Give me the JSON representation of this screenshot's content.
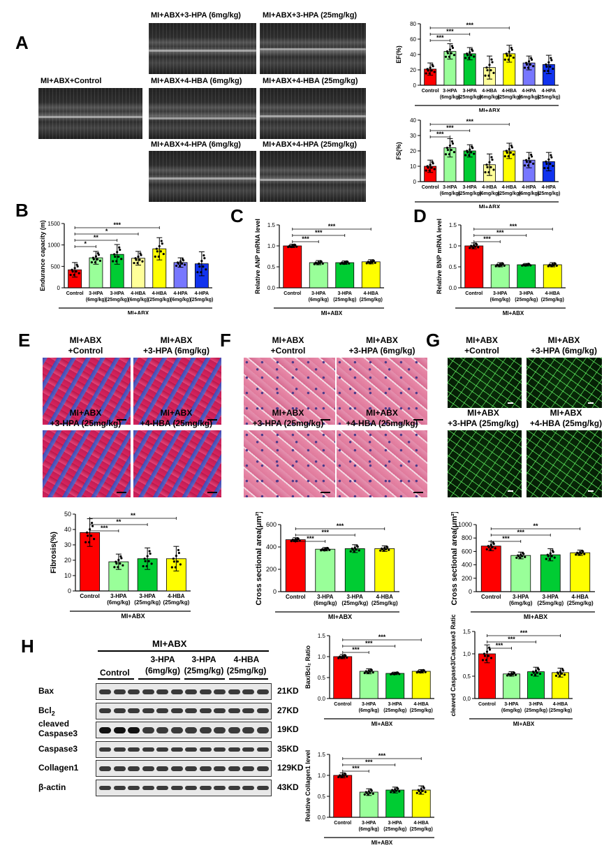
{
  "panels": {
    "A": "A",
    "B": "B",
    "C": "C",
    "D": "D",
    "E": "E",
    "F": "F",
    "G": "G",
    "H": "H"
  },
  "echo_titles": {
    "control": "MI+ABX+Control",
    "hpa3_6": "MI+ABX+3-HPA (6mg/kg)",
    "hpa3_25": "MI+ABX+3-HPA (25mg/kg)",
    "hba4_6": "MI+ABX+4-HBA (6mg/kg)",
    "hba4_25": "MI+ABX+4-HBA (25mg/kg)",
    "hpa4_6": "MI+ABX+4-HPA (6mg/kg)",
    "hpa4_25": "MI+ABX+4-HPA (25mg/kg)"
  },
  "histo_titles": {
    "control": [
      "MI+ABX",
      "+Control"
    ],
    "hpa3_6": [
      "MI+ABX",
      "+3-HPA (6mg/kg)"
    ],
    "hpa3_25": [
      "MI+ABX",
      "+3-HPA (25mg/kg)"
    ],
    "hba4_25": [
      "MI+ABX",
      "+4-HBA (25mg/kg)"
    ]
  },
  "blot": {
    "group_label": "MI+ABX",
    "columns": [
      [
        "Control"
      ],
      [
        "3-HPA",
        "(6mg/kg)"
      ],
      [
        "3-HPA",
        "(25mg/kg)"
      ],
      [
        "4-HBA",
        "(25mg/kg)"
      ]
    ],
    "rows": [
      {
        "label": "Bax",
        "kd": "21KD"
      },
      {
        "label": "Bcl",
        "sub": "2",
        "kd": "27KD"
      },
      {
        "label": "cleaved",
        "label2": "Caspase3",
        "kd": "19KD"
      },
      {
        "label": "Caspase3",
        "kd": "35KD"
      },
      {
        "label": "Collagen1",
        "kd": "129KD"
      },
      {
        "label": "β-actin",
        "kd": "43KD"
      }
    ]
  },
  "colors": {
    "control": "#ff0000",
    "hpa3_6": "#99ff99",
    "hpa3_25": "#00cc33",
    "hba4_6": "#ffff99",
    "hba4_25": "#ffff00",
    "hpa4_6": "#7777ff",
    "hpa4_25": "#1133ee"
  },
  "chart_data": [
    {
      "id": "ef",
      "type": "bar",
      "ylabel": "EF(%)",
      "ylim": [
        0,
        80
      ],
      "yticks": [
        0,
        20,
        40,
        60,
        80
      ],
      "categories": [
        [
          "Control"
        ],
        [
          "3-HPA",
          "(6mg/kg)"
        ],
        [
          "3-HPA",
          "(25mg/kg)"
        ],
        [
          "4-HBA",
          "(6mg/kg)"
        ],
        [
          "4-HBA",
          "(25mg/kg)"
        ],
        [
          "4-HPA",
          "(6mg/kg)"
        ],
        [
          "4-HPA",
          "(25mg/kg)"
        ]
      ],
      "values": [
        21,
        44,
        41,
        23,
        41,
        29,
        27
      ],
      "errors": [
        8,
        10,
        8,
        15,
        11,
        9,
        12
      ],
      "colors": [
        "#ff0000",
        "#99ff99",
        "#00cc33",
        "#ffff99",
        "#ffff00",
        "#7777ff",
        "#1133ee"
      ],
      "group_label": "MI+ABX",
      "sig": [
        {
          "from": 0,
          "to": 1,
          "label": "***"
        },
        {
          "from": 0,
          "to": 2,
          "label": "***"
        },
        {
          "from": 0,
          "to": 4,
          "label": "***"
        }
      ]
    },
    {
      "id": "fs",
      "type": "bar",
      "ylabel": "FS(%)",
      "ylim": [
        0,
        40
      ],
      "yticks": [
        0,
        10,
        20,
        30,
        40
      ],
      "categories": [
        [
          "Control"
        ],
        [
          "3-HPA",
          "(6mg/kg)"
        ],
        [
          "3-HPA",
          "(25mg/kg)"
        ],
        [
          "4-HBA",
          "(6mg/kg)"
        ],
        [
          "4-HBA",
          "(25mg/kg)"
        ],
        [
          "4-HPA",
          "(6mg/kg)"
        ],
        [
          "4-HPA",
          "(25mg/kg)"
        ]
      ],
      "values": [
        10,
        22,
        20,
        11,
        20,
        14,
        13
      ],
      "errors": [
        4,
        6,
        4,
        7,
        5,
        5,
        6
      ],
      "colors": [
        "#ff0000",
        "#99ff99",
        "#00cc33",
        "#ffff99",
        "#ffff00",
        "#7777ff",
        "#1133ee"
      ],
      "group_label": "MI+ABX",
      "sig": [
        {
          "from": 0,
          "to": 1,
          "label": "***"
        },
        {
          "from": 0,
          "to": 2,
          "label": "***"
        },
        {
          "from": 0,
          "to": 4,
          "label": "***"
        }
      ]
    },
    {
      "id": "endurance",
      "type": "bar",
      "ylabel": "Endurance capacity (m)",
      "ylim": [
        0,
        1500
      ],
      "yticks": [
        0,
        500,
        1000,
        1500
      ],
      "categories": [
        [
          "Control"
        ],
        [
          "3-HPA",
          "(6mg/kg)"
        ],
        [
          "3-HPA",
          "(25mg/kg)"
        ],
        [
          "4-HBA",
          "(6mg/kg)"
        ],
        [
          "4-HBA",
          "(25mg/kg)"
        ],
        [
          "4-HPA",
          "(6mg/kg)"
        ],
        [
          "4-HPA",
          "(25mg/kg)"
        ]
      ],
      "values": [
        420,
        700,
        780,
        690,
        910,
        590,
        560
      ],
      "errors": [
        170,
        150,
        230,
        160,
        260,
        110,
        280
      ],
      "colors": [
        "#ff0000",
        "#99ff99",
        "#00cc33",
        "#ffff99",
        "#ffff00",
        "#7777ff",
        "#1133ee"
      ],
      "group_label": "MI+ABX",
      "sig": [
        {
          "from": 0,
          "to": 1,
          "label": "*"
        },
        {
          "from": 0,
          "to": 2,
          "label": "**"
        },
        {
          "from": 0,
          "to": 3,
          "label": "*"
        },
        {
          "from": 0,
          "to": 4,
          "label": "***"
        }
      ]
    },
    {
      "id": "anp",
      "type": "bar",
      "ylabel": "Relative ANP mRNA level",
      "ylim": [
        0,
        1.5
      ],
      "yticks": [
        "0.0",
        "0.5",
        "1.0",
        "1.5"
      ],
      "categories": [
        [
          "Control"
        ],
        [
          "3-HPA",
          "(6mg/kg)"
        ],
        [
          "3-HPA",
          "(25mg/kg)"
        ],
        [
          "4-HBA",
          "(25mg/kg)"
        ]
      ],
      "values": [
        1.0,
        0.6,
        0.6,
        0.62
      ],
      "errors": [
        0.04,
        0.05,
        0.04,
        0.05
      ],
      "colors": [
        "#ff0000",
        "#99ff99",
        "#00cc33",
        "#ffff00"
      ],
      "group_label": "MI+ABX",
      "sig": [
        {
          "from": 0,
          "to": 1,
          "label": "***"
        },
        {
          "from": 0,
          "to": 2,
          "label": "***"
        },
        {
          "from": 0,
          "to": 3,
          "label": "***"
        }
      ]
    },
    {
      "id": "bnp",
      "type": "bar",
      "ylabel": "Relative BNP mRNA level",
      "ylim": [
        0,
        1.5
      ],
      "yticks": [
        "0.0",
        "0.5",
        "1.0",
        "1.5"
      ],
      "categories": [
        [
          "Control"
        ],
        [
          "3-HPA",
          "(6mg/kg)"
        ],
        [
          "3-HPA",
          "(25mg/kg)"
        ],
        [
          "4-HBA",
          "(25mg/kg)"
        ]
      ],
      "values": [
        1.0,
        0.55,
        0.55,
        0.55
      ],
      "errors": [
        0.07,
        0.05,
        0.03,
        0.05
      ],
      "colors": [
        "#ff0000",
        "#99ff99",
        "#00cc33",
        "#ffff00"
      ],
      "group_label": "MI+ABX",
      "sig": [
        {
          "from": 0,
          "to": 1,
          "label": "***"
        },
        {
          "from": 0,
          "to": 2,
          "label": "***"
        },
        {
          "from": 0,
          "to": 3,
          "label": "***"
        }
      ]
    },
    {
      "id": "fibrosis",
      "type": "bar",
      "ylabel": "Fibrosis(%)",
      "ylim": [
        0,
        50
      ],
      "yticks": [
        0,
        10,
        20,
        30,
        40,
        50
      ],
      "categories": [
        [
          "Control"
        ],
        [
          "3-HPA",
          "(6mg/kg)"
        ],
        [
          "3-HPA",
          "(25mg/kg)"
        ],
        [
          "4-HBA",
          "(25mg/kg)"
        ]
      ],
      "values": [
        38,
        19,
        21,
        21
      ],
      "errors": [
        9,
        5,
        7,
        8
      ],
      "colors": [
        "#ff0000",
        "#99ff99",
        "#00cc33",
        "#ffff00"
      ],
      "group_label": "MI+ABX",
      "sig": [
        {
          "from": 0,
          "to": 1,
          "label": "***"
        },
        {
          "from": 0,
          "to": 2,
          "label": "**"
        },
        {
          "from": 0,
          "to": 3,
          "label": "**"
        }
      ]
    },
    {
      "id": "csa_he",
      "type": "bar",
      "ylabel": "Cross sectional area(μm²)",
      "ylim": [
        0,
        600
      ],
      "yticks": [
        0,
        200,
        400,
        600
      ],
      "categories": [
        [
          "Control"
        ],
        [
          "3-HPA",
          "(6mg/kg)"
        ],
        [
          "3-HPA",
          "(25mg/kg)"
        ],
        [
          "4-HBA",
          "(25mg/kg)"
        ]
      ],
      "values": [
        465,
        380,
        385,
        385
      ],
      "errors": [
        18,
        15,
        35,
        25
      ],
      "colors": [
        "#ff0000",
        "#99ff99",
        "#00cc33",
        "#ffff00"
      ],
      "group_label": "MI+ABX",
      "sig": [
        {
          "from": 0,
          "to": 1,
          "label": "***"
        },
        {
          "from": 0,
          "to": 2,
          "label": "***"
        },
        {
          "from": 0,
          "to": 3,
          "label": "***"
        }
      ]
    },
    {
      "id": "csa_wga",
      "type": "bar",
      "ylabel": "Cross sectional area(μm²)",
      "ylim": [
        0,
        1000
      ],
      "yticks": [
        0,
        200,
        400,
        600,
        800,
        1000
      ],
      "categories": [
        [
          "Control"
        ],
        [
          "3-HPA",
          "(6mg/kg)"
        ],
        [
          "3-HPA",
          "(25mg/kg)"
        ],
        [
          "4-HBA",
          "(25mg/kg)"
        ]
      ],
      "values": [
        680,
        540,
        550,
        580
      ],
      "errors": [
        70,
        50,
        90,
        40
      ],
      "colors": [
        "#ff0000",
        "#99ff99",
        "#00cc33",
        "#ffff00"
      ],
      "group_label": "MI+ABX",
      "sig": [
        {
          "from": 0,
          "to": 1,
          "label": "***"
        },
        {
          "from": 0,
          "to": 2,
          "label": "***"
        },
        {
          "from": 0,
          "to": 3,
          "label": "**"
        }
      ]
    },
    {
      "id": "baxbcl2",
      "type": "bar",
      "ylabel": "Bax/Bcl₂ Ratio",
      "ylim": [
        0,
        1.5
      ],
      "yticks": [
        "0.0",
        "0.5",
        "1.0",
        "1.5"
      ],
      "categories": [
        [
          "Control"
        ],
        [
          "3-HPA",
          "(6mg/kg)"
        ],
        [
          "3-HPA",
          "(25mg/kg)"
        ],
        [
          "4-HBA",
          "(25mg/kg)"
        ]
      ],
      "values": [
        1.0,
        0.65,
        0.6,
        0.65
      ],
      "errors": [
        0.05,
        0.06,
        0.03,
        0.04
      ],
      "colors": [
        "#ff0000",
        "#99ff99",
        "#00cc33",
        "#ffff00"
      ],
      "group_label": "MI+ABX",
      "sig": [
        {
          "from": 0,
          "to": 1,
          "label": "***"
        },
        {
          "from": 0,
          "to": 2,
          "label": "***"
        },
        {
          "from": 0,
          "to": 3,
          "label": "***"
        }
      ]
    },
    {
      "id": "casp",
      "type": "bar",
      "ylabel": "cleaved Caspase3/Caspase3 Ratio",
      "ylim": [
        0,
        1.5
      ],
      "yticks": [
        "0,0",
        "0,5",
        "1,0",
        "1,5"
      ],
      "categories": [
        [
          "Control"
        ],
        [
          "3-HPA",
          "(6mg/kg)"
        ],
        [
          "3-HPA",
          "(25mg/kg)"
        ],
        [
          "4-HBA",
          "(25mg/kg)"
        ]
      ],
      "values": [
        1.0,
        0.55,
        0.6,
        0.58
      ],
      "errors": [
        0.2,
        0.05,
        0.1,
        0.1
      ],
      "colors": [
        "#ff0000",
        "#99ff99",
        "#00cc33",
        "#ffff00"
      ],
      "group_label": "MI+ABX",
      "sig": [
        {
          "from": 0,
          "to": 1,
          "label": "***"
        },
        {
          "from": 0,
          "to": 2,
          "label": "***"
        },
        {
          "from": 0,
          "to": 3,
          "label": "***"
        }
      ]
    },
    {
      "id": "collagen",
      "type": "bar",
      "ylabel": "Relative Collagen1 level",
      "ylim": [
        0,
        1.5
      ],
      "yticks": [
        "0.0",
        "0.5",
        "1.0",
        "1.5"
      ],
      "categories": [
        [
          "Control"
        ],
        [
          "3-HPA",
          "(6mg/kg)"
        ],
        [
          "3-HPA",
          "(25mg/kg)"
        ],
        [
          "4-HBA",
          "(25mg/kg)"
        ]
      ],
      "values": [
        1.0,
        0.6,
        0.65,
        0.65
      ],
      "errors": [
        0.06,
        0.08,
        0.07,
        0.1
      ],
      "colors": [
        "#ff0000",
        "#99ff99",
        "#00cc33",
        "#ffff00"
      ],
      "group_label": "MI+ABX",
      "sig": [
        {
          "from": 0,
          "to": 1,
          "label": "***"
        },
        {
          "from": 0,
          "to": 2,
          "label": "***"
        },
        {
          "from": 0,
          "to": 3,
          "label": "***"
        }
      ]
    }
  ]
}
